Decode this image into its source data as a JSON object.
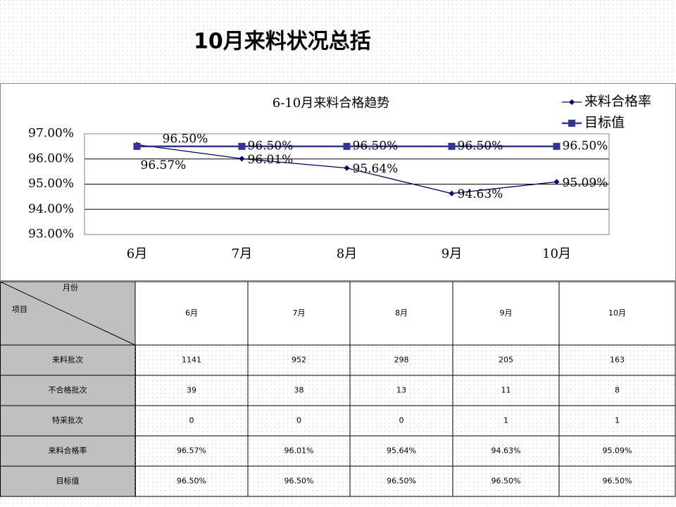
{
  "title": "10月来料状况总括",
  "chart_data": {
    "type": "line",
    "title": "6-10月来料合格趋势",
    "categories": [
      "6月",
      "7月",
      "8月",
      "9月",
      "10月"
    ],
    "series": [
      {
        "name": "来料合格率",
        "color": "#000066",
        "marker": "diamond",
        "values": [
          96.57,
          96.01,
          95.64,
          94.63,
          95.09
        ],
        "value_labels": [
          "96.57%",
          "96.01%",
          "95.64%",
          "94.63%",
          "95.09%"
        ]
      },
      {
        "name": "目标值",
        "color": "#333399",
        "marker": "square",
        "values": [
          96.5,
          96.5,
          96.5,
          96.5,
          96.5
        ],
        "value_labels": [
          "96.50%",
          "96.50%",
          "96.50%",
          "96.50%",
          "96.50%"
        ]
      }
    ],
    "ylim": [
      93,
      97
    ],
    "yticks": [
      {
        "value": 93,
        "label": "93.00%"
      },
      {
        "value": 94,
        "label": "94.00%"
      },
      {
        "value": 95,
        "label": "95.00%"
      },
      {
        "value": 96,
        "label": "96.00%"
      },
      {
        "value": 97,
        "label": "97.00%"
      }
    ],
    "grid": true,
    "legend": "top-right"
  },
  "table": {
    "corner_top": "月份",
    "corner_bottom": "项目",
    "columns": [
      "6月",
      "7月",
      "8月",
      "9月",
      "10月"
    ],
    "rows": [
      {
        "label": "来料批次",
        "values": [
          1141,
          952,
          298,
          205,
          163
        ]
      },
      {
        "label": "不合格批次",
        "values": [
          39,
          38,
          13,
          11,
          8
        ]
      },
      {
        "label": "特采批次",
        "values": [
          0,
          0,
          0,
          1,
          1
        ]
      },
      {
        "label": "来料合格率",
        "values": [
          "96.57%",
          "96.01%",
          "95.64%",
          "94.63%",
          "95.09%"
        ]
      },
      {
        "label": "目标值",
        "values": [
          "96.50%",
          "96.50%",
          "96.50%",
          "96.50%",
          "96.50%"
        ]
      }
    ]
  }
}
